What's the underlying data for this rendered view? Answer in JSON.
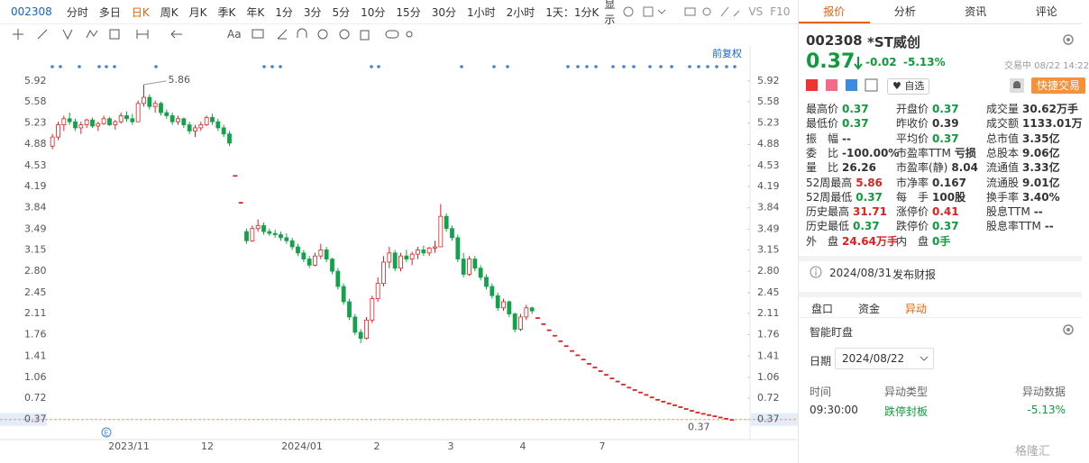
{
  "toolbar": {
    "code": "002308",
    "periods": [
      "分时",
      "多日",
      "日K",
      "周K",
      "月K",
      "季K",
      "年K",
      "1分",
      "3分",
      "5分",
      "10分",
      "15分",
      "30分",
      "1小时",
      "2小时",
      "1天：1分K"
    ],
    "active": 2,
    "display": "显示",
    "vs": "VS",
    "f10": "F10",
    "text_tool": "Aa"
  },
  "chart_data": {
    "type": "candlestick",
    "adjust_label": "前复权",
    "up_color": "#e02020",
    "down_color": "#12a34a",
    "ylim": [
      0.1,
      6.36
    ],
    "yticks": [
      5.92,
      5.58,
      5.23,
      4.88,
      4.53,
      4.19,
      3.84,
      3.49,
      3.15,
      {
        "value": 2.8,
        "label": "2.80"
      },
      2.45,
      2.11,
      1.76,
      1.41,
      1.06,
      0.72,
      0.37
    ],
    "xlabels": [
      "2023/11",
      "12",
      "2024/01",
      "2",
      "3",
      "4",
      "7"
    ],
    "high_label": 5.86,
    "last_price": 0.37,
    "event_marker": "E",
    "candles": [
      [
        4.85,
        5.05,
        4.8,
        5.0
      ],
      [
        5.0,
        5.25,
        4.95,
        5.2
      ],
      [
        5.2,
        5.35,
        5.1,
        5.3
      ],
      [
        5.3,
        5.4,
        5.2,
        5.25
      ],
      [
        5.25,
        5.3,
        5.1,
        5.15
      ],
      [
        5.15,
        5.25,
        5.05,
        5.2
      ],
      [
        5.2,
        5.3,
        5.15,
        5.28
      ],
      [
        5.28,
        5.32,
        5.15,
        5.18
      ],
      [
        5.18,
        5.25,
        5.1,
        5.22
      ],
      [
        5.22,
        5.35,
        5.2,
        5.3
      ],
      [
        5.3,
        5.33,
        5.18,
        5.2
      ],
      [
        5.2,
        5.28,
        5.12,
        5.25
      ],
      [
        5.25,
        5.4,
        5.22,
        5.35
      ],
      [
        5.35,
        5.42,
        5.25,
        5.3
      ],
      [
        5.3,
        5.38,
        5.2,
        5.25
      ],
      [
        5.25,
        5.6,
        5.25,
        5.55
      ],
      [
        5.55,
        5.86,
        5.5,
        5.65
      ],
      [
        5.65,
        5.7,
        5.45,
        5.5
      ],
      [
        5.5,
        5.6,
        5.4,
        5.55
      ],
      [
        5.55,
        5.58,
        5.35,
        5.4
      ],
      [
        5.4,
        5.45,
        5.3,
        5.35
      ],
      [
        5.35,
        5.4,
        5.2,
        5.25
      ],
      [
        5.25,
        5.35,
        5.2,
        5.3
      ],
      [
        5.3,
        5.32,
        5.15,
        5.2
      ],
      [
        5.2,
        5.25,
        5.05,
        5.1
      ],
      [
        5.1,
        5.2,
        5.0,
        5.15
      ],
      [
        5.15,
        5.25,
        5.1,
        5.2
      ],
      [
        5.2,
        5.35,
        5.18,
        5.32
      ],
      [
        5.32,
        5.38,
        5.2,
        5.25
      ],
      [
        5.25,
        5.3,
        5.1,
        5.15
      ],
      [
        5.15,
        5.2,
        5.0,
        5.05
      ],
      [
        5.05,
        5.1,
        4.85,
        4.9
      ],
      [
        4.37,
        4.37,
        4.37,
        4.37
      ],
      [
        3.93,
        3.93,
        3.93,
        3.93
      ],
      [
        3.45,
        3.5,
        3.25,
        3.3
      ],
      [
        3.3,
        3.55,
        3.28,
        3.5
      ],
      [
        3.5,
        3.65,
        3.45,
        3.55
      ],
      [
        3.55,
        3.6,
        3.4,
        3.45
      ],
      [
        3.45,
        3.5,
        3.38,
        3.42
      ],
      [
        3.42,
        3.48,
        3.35,
        3.4
      ],
      [
        3.4,
        3.45,
        3.3,
        3.35
      ],
      [
        3.35,
        3.42,
        3.25,
        3.3
      ],
      [
        3.3,
        3.35,
        3.15,
        3.2
      ],
      [
        3.2,
        3.25,
        3.05,
        3.1
      ],
      [
        3.1,
        3.15,
        2.95,
        3.0
      ],
      [
        3.0,
        3.05,
        2.85,
        2.9
      ],
      [
        2.9,
        3.1,
        2.88,
        3.05
      ],
      [
        3.05,
        3.25,
        3.0,
        3.15
      ],
      [
        3.15,
        3.2,
        2.95,
        3.0
      ],
      [
        3.0,
        3.02,
        2.75,
        2.8
      ],
      [
        2.8,
        2.85,
        2.5,
        2.55
      ],
      [
        2.55,
        2.6,
        2.25,
        2.3
      ],
      [
        2.3,
        2.35,
        2.0,
        2.05
      ],
      [
        2.05,
        2.1,
        1.75,
        1.8
      ],
      [
        1.8,
        1.85,
        1.62,
        1.7
      ],
      [
        1.7,
        2.05,
        1.68,
        2.0
      ],
      [
        2.0,
        2.4,
        1.95,
        2.35
      ],
      [
        2.35,
        2.7,
        2.3,
        2.6
      ],
      [
        2.6,
        3.05,
        2.55,
        2.95
      ],
      [
        2.95,
        3.2,
        2.85,
        3.1
      ],
      [
        3.1,
        3.15,
        2.8,
        2.85
      ],
      [
        2.85,
        3.1,
        2.8,
        3.05
      ],
      [
        3.05,
        3.15,
        2.95,
        3.0
      ],
      [
        3.0,
        3.12,
        2.9,
        3.08
      ],
      [
        3.08,
        3.2,
        3.0,
        3.15
      ],
      [
        3.15,
        3.22,
        3.05,
        3.1
      ],
      [
        3.1,
        3.2,
        3.05,
        3.18
      ],
      [
        3.18,
        3.3,
        3.1,
        3.2
      ],
      [
        3.2,
        3.9,
        3.2,
        3.7
      ],
      [
        3.7,
        3.75,
        3.45,
        3.5
      ],
      [
        3.5,
        3.55,
        3.3,
        3.35
      ],
      [
        3.35,
        3.4,
        2.95,
        3.0
      ],
      [
        3.0,
        3.1,
        2.7,
        2.75
      ],
      [
        2.75,
        3.05,
        2.72,
        3.0
      ],
      [
        3.0,
        3.05,
        2.8,
        2.85
      ],
      [
        2.85,
        2.9,
        2.65,
        2.7
      ],
      [
        2.7,
        2.75,
        2.5,
        2.55
      ],
      [
        2.55,
        2.6,
        2.35,
        2.4
      ],
      [
        2.4,
        2.45,
        2.15,
        2.2
      ],
      [
        2.2,
        2.35,
        2.15,
        2.3
      ],
      [
        2.3,
        2.32,
        2.05,
        2.1
      ],
      [
        2.1,
        2.12,
        1.8,
        1.85
      ],
      [
        1.85,
        2.1,
        1.82,
        2.05
      ],
      [
        2.05,
        2.25,
        2.0,
        2.2
      ],
      [
        2.2,
        2.22,
        2.1,
        2.15
      ],
      [
        2.04,
        2.04,
        2.04,
        2.04
      ],
      [
        1.94,
        1.94,
        1.94,
        1.94
      ],
      [
        1.84,
        1.84,
        1.84,
        1.84
      ],
      [
        1.75,
        1.75,
        1.75,
        1.75
      ],
      [
        1.66,
        1.66,
        1.66,
        1.66
      ],
      [
        1.58,
        1.58,
        1.58,
        1.58
      ],
      [
        1.5,
        1.5,
        1.5,
        1.5
      ],
      [
        1.43,
        1.43,
        1.43,
        1.43
      ],
      [
        1.36,
        1.36,
        1.36,
        1.36
      ],
      [
        1.29,
        1.29,
        1.29,
        1.29
      ],
      [
        1.23,
        1.23,
        1.23,
        1.23
      ],
      [
        1.17,
        1.17,
        1.17,
        1.17
      ],
      [
        1.11,
        1.11,
        1.11,
        1.11
      ],
      [
        1.05,
        1.05,
        1.05,
        1.05
      ],
      [
        1.0,
        1.0,
        1.0,
        1.0
      ],
      [
        0.95,
        0.95,
        0.95,
        0.95
      ],
      [
        0.9,
        0.9,
        0.9,
        0.9
      ],
      [
        0.86,
        0.86,
        0.86,
        0.86
      ],
      [
        0.82,
        0.82,
        0.82,
        0.82
      ],
      [
        0.78,
        0.78,
        0.78,
        0.78
      ],
      [
        0.74,
        0.74,
        0.74,
        0.74
      ],
      [
        0.7,
        0.7,
        0.7,
        0.7
      ],
      [
        0.67,
        0.67,
        0.67,
        0.67
      ],
      [
        0.64,
        0.64,
        0.64,
        0.64
      ],
      [
        0.61,
        0.61,
        0.61,
        0.61
      ],
      [
        0.58,
        0.58,
        0.58,
        0.58
      ],
      [
        0.55,
        0.55,
        0.55,
        0.55
      ],
      [
        0.52,
        0.52,
        0.52,
        0.52
      ],
      [
        0.49,
        0.49,
        0.49,
        0.49
      ],
      [
        0.47,
        0.47,
        0.47,
        0.47
      ],
      [
        0.45,
        0.45,
        0.45,
        0.45
      ],
      [
        0.43,
        0.43,
        0.43,
        0.43
      ],
      [
        0.41,
        0.41,
        0.41,
        0.41
      ],
      [
        0.39,
        0.39,
        0.39,
        0.39
      ],
      [
        0.37,
        0.37,
        0.37,
        0.37
      ]
    ]
  },
  "quote": {
    "tabs": [
      "报价",
      "分析",
      "资讯",
      "评论"
    ],
    "active_tab": 0,
    "code": "002308",
    "name": "*ST威创",
    "price": "0.37",
    "change": "-0.02",
    "change_pct": "-5.13%",
    "status": "交易中 08/22 14:22",
    "watchlist": "自选",
    "trade": "快捷交易",
    "fields": [
      [
        {
          "label": "最高价",
          "value": "0.37",
          "tone": "down"
        },
        {
          "label": "开盘价",
          "value": "0.37",
          "tone": "down"
        },
        {
          "label": "成交量",
          "value": "30.62万手"
        }
      ],
      [
        {
          "label": "最低价",
          "value": "0.37",
          "tone": "down"
        },
        {
          "label": "昨收价",
          "value": "0.39"
        },
        {
          "label": "成交额",
          "value": "1133.01万"
        }
      ],
      [
        {
          "label": "振　幅",
          "value": "--"
        },
        {
          "label": "平均价",
          "value": "0.37",
          "tone": "down"
        },
        {
          "label": "总市值",
          "value": "3.35亿"
        }
      ],
      [
        {
          "label": "委　比",
          "value": "-100.00%"
        },
        {
          "label": "市盈率TTM",
          "value": "亏损"
        },
        {
          "label": "总股本",
          "value": "9.06亿"
        }
      ],
      [
        {
          "label": "量　比",
          "value": "26.26"
        },
        {
          "label": "市盈率(静)",
          "value": "8.04"
        },
        {
          "label": "流通值",
          "value": "3.33亿"
        }
      ],
      [
        {
          "label": "52周最高",
          "value": "5.86",
          "tone": "up"
        },
        {
          "label": "市净率",
          "value": "0.167"
        },
        {
          "label": "流通股",
          "value": "9.01亿"
        }
      ],
      [
        {
          "label": "52周最低",
          "value": "0.37",
          "tone": "down"
        },
        {
          "label": "每　手",
          "value": "100股"
        },
        {
          "label": "换手率",
          "value": "3.40%"
        }
      ],
      [
        {
          "label": "历史最高",
          "value": "31.71",
          "tone": "up"
        },
        {
          "label": "涨停价",
          "value": "0.41",
          "tone": "up"
        },
        {
          "label": "股息TTM",
          "value": "--"
        }
      ],
      [
        {
          "label": "历史最低",
          "value": "0.37",
          "tone": "down"
        },
        {
          "label": "跌停价",
          "value": "0.37",
          "tone": "down"
        },
        {
          "label": "股息率TTM",
          "value": "--"
        }
      ],
      [
        {
          "label": "外　盘",
          "value": "24.64万手",
          "tone": "up"
        },
        {
          "label": "内　盘",
          "value": "0手",
          "tone": "down"
        }
      ]
    ],
    "notice_date": "2024/08/31",
    "notice_text": "发布财报"
  },
  "monitor": {
    "tabs": [
      "盘口",
      "资金",
      "异动"
    ],
    "active_tab": 2,
    "title": "智能盯盘",
    "date_label": "日期",
    "date": "2024/08/22",
    "columns": [
      "时间",
      "异动类型",
      "异动数据"
    ],
    "rows": [
      [
        "09:30:00",
        "跌停封板",
        "-5.13%"
      ]
    ]
  },
  "watermark": "格隆汇"
}
